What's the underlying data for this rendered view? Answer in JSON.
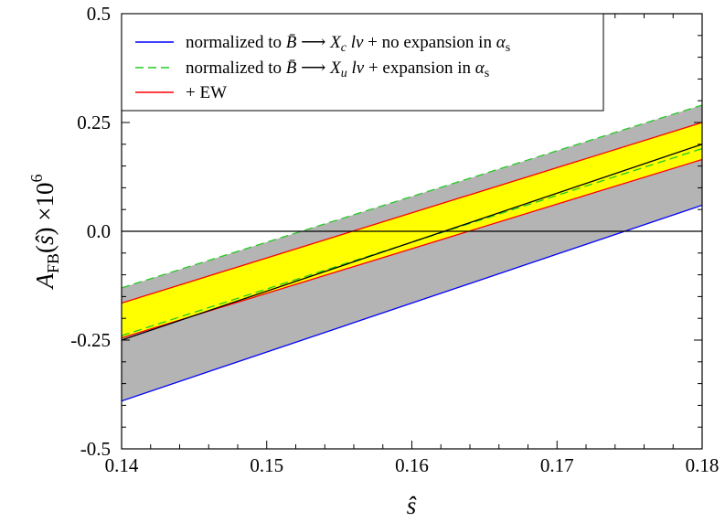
{
  "chart_data": {
    "type": "line",
    "title": "",
    "xlabel": "ŝ",
    "ylabel": "A_FB(ŝ) ×10^6",
    "xlim": [
      0.14,
      0.18
    ],
    "ylim": [
      -0.5,
      0.5
    ],
    "x_ticks": [
      0.14,
      0.15,
      0.16,
      0.17,
      0.18
    ],
    "x_tick_labels": [
      "0.14",
      "0.15",
      "0.16",
      "0.17",
      "0.18"
    ],
    "y_ticks": [
      -0.5,
      -0.25,
      0.0,
      0.25,
      0.5
    ],
    "y_tick_labels": [
      "-0.5",
      "-0.25",
      "0.0",
      "0.25",
      "0.5"
    ],
    "legend_position": "top-left",
    "legend": [
      {
        "text": "normalized to B̄ → X_c lν + no expansion in α_s",
        "color": "#0000ff",
        "dash": "solid"
      },
      {
        "text": "normalized to B̄ → X_u lν + expansion in α_s",
        "color": "#22cc22",
        "dash": "dashed"
      },
      {
        "text": "+ EW",
        "color": "#ff0000",
        "dash": "solid"
      }
    ],
    "series": [
      {
        "color": "#0000ff",
        "style": "solid",
        "x": [
          0.14,
          0.18
        ],
        "values": [
          -0.39,
          0.06
        ]
      },
      {
        "color": "#22cc22",
        "style": "dashed",
        "x": [
          0.14,
          0.18
        ],
        "values": [
          -0.13,
          0.29
        ]
      },
      {
        "color": "#22cc22",
        "style": "dashed",
        "x": [
          0.14,
          0.18
        ],
        "values": [
          -0.24,
          0.19
        ]
      },
      {
        "color": "#ff0000",
        "style": "solid",
        "x": [
          0.14,
          0.18
        ],
        "values": [
          -0.165,
          0.25
        ]
      },
      {
        "color": "#ff0000",
        "style": "solid",
        "x": [
          0.14,
          0.18
        ],
        "values": [
          -0.245,
          0.165
        ]
      },
      {
        "color": "#000000",
        "style": "solid",
        "x": [
          0.14,
          0.18
        ],
        "values": [
          -0.25,
          0.2
        ]
      }
    ],
    "bands": [
      {
        "color": "#b4b4b4",
        "x": [
          0.14,
          0.18
        ],
        "upper": [
          -0.13,
          0.29
        ],
        "lower": [
          -0.39,
          0.06
        ]
      },
      {
        "color": "#ffff00",
        "x": [
          0.14,
          0.18
        ],
        "upper": [
          -0.165,
          0.25
        ],
        "lower": [
          -0.245,
          0.165
        ]
      }
    ],
    "reference_lines": [
      {
        "y": 0.0,
        "color": "#000000"
      }
    ]
  }
}
